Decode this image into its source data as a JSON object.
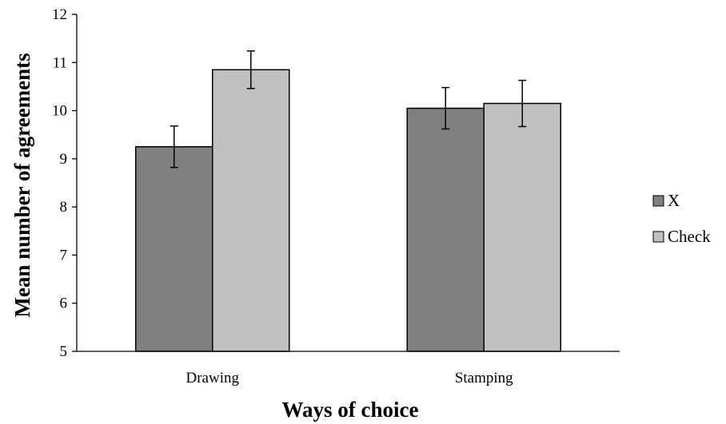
{
  "chart_data": {
    "type": "bar",
    "title": "",
    "xlabel": "Ways of choice",
    "ylabel": "Mean number of agreements",
    "categories": [
      "Drawing",
      "Stamping"
    ],
    "series": [
      {
        "name": "X",
        "color": "#808080",
        "values": [
          9.25,
          10.05
        ],
        "error": [
          0.43,
          0.43
        ]
      },
      {
        "name": "Check",
        "color": "#c0c0c0",
        "values": [
          10.85,
          10.15
        ],
        "error": [
          0.39,
          0.48
        ]
      }
    ],
    "ylim": [
      5,
      12
    ],
    "yticks": [
      5,
      6,
      7,
      8,
      9,
      10,
      11,
      12
    ],
    "grid": false,
    "legend_position": "right"
  }
}
